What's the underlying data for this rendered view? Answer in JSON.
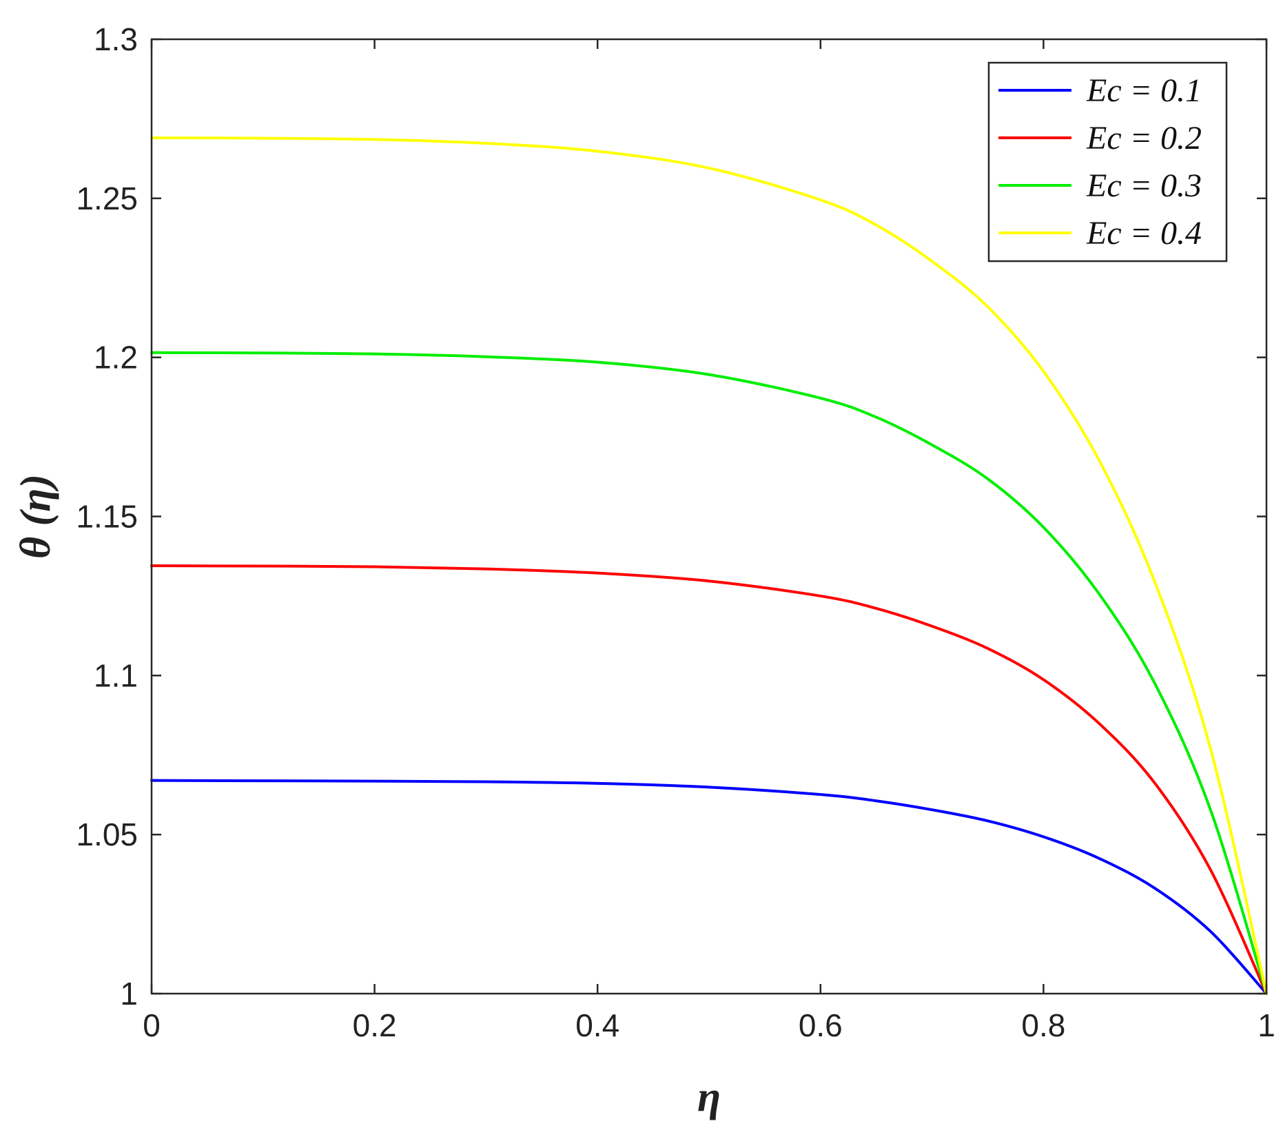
{
  "chart_data": {
    "type": "line",
    "title": "",
    "xlabel": "η",
    "ylabel": "θ (η)",
    "xlim": [
      0,
      1
    ],
    "ylim": [
      1,
      1.3
    ],
    "xticks": [
      0,
      0.2,
      0.4,
      0.6,
      0.8,
      1
    ],
    "xtick_labels": [
      "0",
      "0.2",
      "0.4",
      "0.6",
      "0.8",
      "1"
    ],
    "yticks": [
      1,
      1.05,
      1.1,
      1.15,
      1.2,
      1.25,
      1.3
    ],
    "ytick_labels": [
      "1",
      "1.05",
      "1.1",
      "1.15",
      "1.2",
      "1.25",
      "1.3"
    ],
    "grid": false,
    "legend_position": "top-right",
    "x": [
      0,
      0.1,
      0.2,
      0.3,
      0.4,
      0.5,
      0.6,
      0.65,
      0.7,
      0.75,
      0.8,
      0.85,
      0.9,
      0.95,
      1.0
    ],
    "series": [
      {
        "name": "Ec = 0.1",
        "color": "#0000ff",
        "values": [
          1.067,
          1.0669,
          1.0668,
          1.0666,
          1.0661,
          1.0649,
          1.0626,
          1.0606,
          1.0578,
          1.0543,
          1.0493,
          1.0425,
          1.0331,
          1.0195,
          1.0
        ]
      },
      {
        "name": "Ec = 0.2",
        "color": "#ff0000",
        "values": [
          1.1345,
          1.1344,
          1.1342,
          1.1335,
          1.1322,
          1.1297,
          1.125,
          1.1211,
          1.1155,
          1.1085,
          1.0987,
          1.0849,
          1.0661,
          1.0388,
          1.0
        ]
      },
      {
        "name": "Ec = 0.3",
        "color": "#00ee00",
        "values": [
          1.2015,
          1.2014,
          1.2011,
          1.2002,
          1.1985,
          1.1946,
          1.1872,
          1.1812,
          1.1725,
          1.1618,
          1.1466,
          1.1256,
          1.0974,
          1.0576,
          1.0
        ]
      },
      {
        "name": "Ec = 0.4",
        "color": "#ffff00",
        "values": [
          1.269,
          1.2689,
          1.2685,
          1.2673,
          1.2648,
          1.2595,
          1.2495,
          1.2416,
          1.2302,
          1.2159,
          1.1956,
          1.1676,
          1.1293,
          1.0768,
          1.0
        ]
      }
    ]
  }
}
